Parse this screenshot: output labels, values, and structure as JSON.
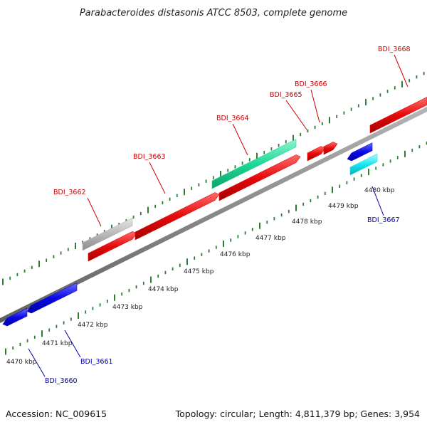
{
  "title": "Parabacteroides distasonis ATCC 8503, complete genome",
  "footer": {
    "accession": "Accession: NC_009615",
    "topology": "Topology: circular; Length: 4,811,379 bp; Genes: 3,954"
  },
  "colors": {
    "forward_label": "#cc0000",
    "reverse_label": "#0000aa",
    "backbone": "#888888",
    "ticks": "#2e7d32"
  },
  "scale_labels": [
    "4470 kbp",
    "4471 kbp",
    "4472 kbp",
    "4473 kbp",
    "4474 kbp",
    "4475 kbp",
    "4476 kbp",
    "4477 kbp",
    "4478 kbp",
    "4479 kbp",
    "4480 kbp"
  ],
  "gene_labels": [
    {
      "text": "BDI_3660",
      "strand": "reverse"
    },
    {
      "text": "BDI_3661",
      "strand": "reverse"
    },
    {
      "text": "BDI_3662",
      "strand": "forward"
    },
    {
      "text": "BDI_3663",
      "strand": "forward"
    },
    {
      "text": "BDI_3664",
      "strand": "forward"
    },
    {
      "text": "BDI_3665",
      "strand": "forward"
    },
    {
      "text": "BDI_3666",
      "strand": "forward"
    },
    {
      "text": "BDI_3667",
      "strand": "reverse"
    },
    {
      "text": "BDI_3668",
      "strand": "forward"
    }
  ],
  "features": [
    {
      "name": "gene-3660",
      "color": "#0a0ae6",
      "strand": "reverse"
    },
    {
      "name": "gene-3661",
      "color": "#0a0ae6",
      "strand": "reverse"
    },
    {
      "name": "gene-3662",
      "color": "#e60a0a",
      "strand": "forward"
    },
    {
      "name": "cds-3662",
      "color": "#b8b8b8",
      "strand": "forward"
    },
    {
      "name": "gene-3663",
      "color": "#e60a0a",
      "strand": "forward"
    },
    {
      "name": "gene-3664",
      "color": "#e60a0a",
      "strand": "forward"
    },
    {
      "name": "cds-3664",
      "color": "#1ed897",
      "strand": "forward"
    },
    {
      "name": "gene-3665",
      "color": "#e60a0a",
      "strand": "forward"
    },
    {
      "name": "gene-3666",
      "color": "#e60a0a",
      "strand": "forward"
    },
    {
      "name": "gene-3667",
      "color": "#0a0ae6",
      "strand": "reverse"
    },
    {
      "name": "cds-3667",
      "color": "#19e6f0",
      "strand": "reverse"
    },
    {
      "name": "gene-3668",
      "color": "#e60a0a",
      "strand": "forward"
    }
  ]
}
